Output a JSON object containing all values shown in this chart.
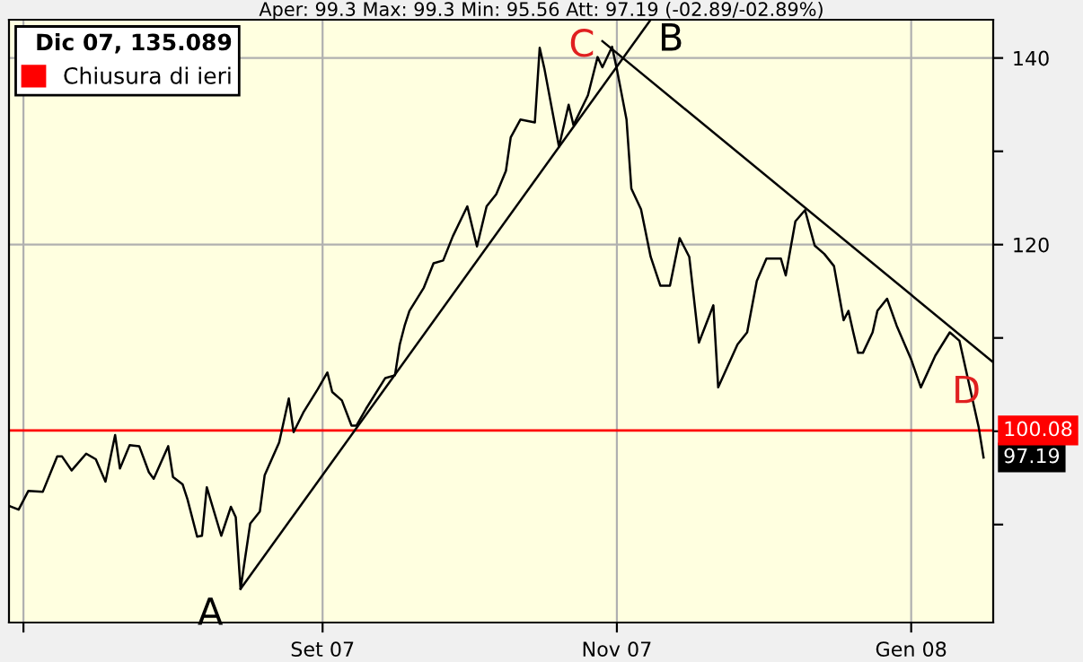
{
  "chart_data": {
    "type": "line",
    "title": "Aper: 99.3 Max: 99.3 Min: 95.56 Att: 97.19 (-02.89/-02.89%)",
    "legend_title": "Dic 07, 135.089",
    "legend": "top left",
    "grid": true,
    "xlim": [
      "2007-06-28",
      "2008-01-18"
    ],
    "xticks": [
      {
        "value": "2007-07-01",
        "label": null
      },
      {
        "value": "2007-09-01",
        "label": "Set 07"
      },
      {
        "value": "2007-11-01",
        "label": "Nov 07"
      },
      {
        "value": "2008-01-01",
        "label": "Gen 08"
      }
    ],
    "ylim": [
      79.5,
      144.1
    ],
    "yticks": [
      {
        "value": 90,
        "label": null
      },
      {
        "value": 100,
        "label": null
      },
      {
        "value": 110,
        "label": null
      },
      120,
      {
        "value": 130,
        "label": null
      },
      140
    ],
    "ref_lines": [
      {
        "axis": "y",
        "value": 100.08,
        "label": "Chiusura di ieri",
        "color": "#ff0000"
      }
    ],
    "annotations": [
      {
        "text": "A",
        "x": "2007-08-15",
        "y": 83.1
      },
      {
        "text": "B",
        "x": "2007-11-08",
        "y": 144.1
      },
      {
        "text": "C",
        "x": "2007-10-29",
        "y": 141.8
      },
      {
        "text": "D",
        "x": "2008-01-18",
        "y": 107.4
      },
      "100.08"
    ],
    "series": [
      {
        "color": "#000000",
        "x": [
          "2007-06-28",
          "2007-06-30",
          "2007-07-02",
          "2007-07-05",
          "2007-07-08",
          "2007-07-09",
          "2007-07-11",
          "2007-07-14",
          "2007-07-16",
          "2007-07-18",
          "2007-07-20",
          "2007-07-21",
          "2007-07-23",
          "2007-07-25",
          "2007-07-27",
          "2007-07-28",
          "2007-07-31",
          "2007-08-01",
          "2007-08-03",
          "2007-08-04",
          "2007-08-06",
          "2007-08-07",
          "2007-08-08",
          "2007-08-11",
          "2007-08-13",
          "2007-08-14",
          "2007-08-15",
          "2007-08-17",
          "2007-08-19",
          "2007-08-20",
          "2007-08-23",
          "2007-08-25",
          "2007-08-26",
          "2007-08-28",
          "2007-08-31",
          "2007-09-02",
          "2007-09-03",
          "2007-09-05",
          "2007-09-07",
          "2007-09-08",
          "2007-09-10",
          "2007-09-14",
          "2007-09-16",
          "2007-09-17",
          "2007-09-18",
          "2007-09-19",
          "2007-09-22",
          "2007-09-24",
          "2007-09-26",
          "2007-09-28",
          "2007-10-01",
          "2007-10-03",
          "2007-10-05",
          "2007-10-07",
          "2007-10-09",
          "2007-10-10",
          "2007-10-12",
          "2007-10-15",
          "2007-10-16",
          "2007-10-17",
          "2007-10-20",
          "2007-10-22",
          "2007-10-23",
          "2007-10-26",
          "2007-10-28",
          "2007-10-29",
          "2007-10-31",
          "2007-11-01",
          "2007-11-03",
          "2007-11-04",
          "2007-11-06",
          "2007-11-08",
          "2007-11-10",
          "2007-11-12",
          "2007-11-14",
          "2007-11-16",
          "2007-11-18",
          "2007-11-21",
          "2007-11-22",
          "2007-11-26",
          "2007-11-28",
          "2007-11-30",
          "2007-12-02",
          "2007-12-05",
          "2007-12-06",
          "2007-12-08",
          "2007-12-10",
          "2007-12-12",
          "2007-12-14",
          "2007-12-16",
          "2007-12-18",
          "2007-12-19",
          "2007-12-20",
          "2007-12-21",
          "2007-12-22",
          "2007-12-24",
          "2007-12-25",
          "2007-12-27",
          "2007-12-29",
          "2008-01-01",
          "2008-01-03",
          "2008-01-06",
          "2008-01-09",
          "2008-01-11",
          "2008-01-15",
          "2008-01-16"
        ],
        "values": [
          92.0,
          91.6,
          93.6,
          93.5,
          97.3,
          97.3,
          95.8,
          97.6,
          97.0,
          94.6,
          99.6,
          96.0,
          98.5,
          98.4,
          95.6,
          94.9,
          98.4,
          95.1,
          94.3,
          92.7,
          88.7,
          88.8,
          94.0,
          88.8,
          91.9,
          90.8,
          83.1,
          90.1,
          91.4,
          95.3,
          98.8,
          103.5,
          99.9,
          102.0,
          104.5,
          106.3,
          104.2,
          103.3,
          100.6,
          100.6,
          102.4,
          105.7,
          106.0,
          109.3,
          111.3,
          112.9,
          115.4,
          118.0,
          118.3,
          120.9,
          124.1,
          119.8,
          124.1,
          125.4,
          127.9,
          131.5,
          133.4,
          133.1,
          141.1,
          138.8,
          130.5,
          135.0,
          132.8,
          136.0,
          140.1,
          139.0,
          141.2,
          138.8,
          133.4,
          126.0,
          123.8,
          118.7,
          115.6,
          115.6,
          120.7,
          118.7,
          109.5,
          113.5,
          104.7,
          109.3,
          110.6,
          116.1,
          118.5,
          118.5,
          116.7,
          122.5,
          123.7,
          119.9,
          119.0,
          117.7,
          111.9,
          112.9,
          110.6,
          108.4,
          108.4,
          110.6,
          112.9,
          114.2,
          111.3,
          107.7,
          104.7,
          108.1,
          110.6,
          109.7,
          100.4,
          97.19
        ],
        "value_labels": [
          null,
          null,
          null,
          null,
          null,
          null,
          null,
          null,
          null,
          null,
          null,
          null,
          null,
          null,
          null,
          null,
          null,
          null,
          null,
          null,
          null,
          null,
          null,
          null,
          null,
          null,
          null,
          null,
          null,
          null,
          null,
          null,
          null,
          null,
          null,
          null,
          null,
          null,
          null,
          null,
          null,
          null,
          null,
          null,
          null,
          null,
          null,
          null,
          null,
          null,
          null,
          null,
          null,
          null,
          null,
          null,
          null,
          null,
          null,
          null,
          null,
          null,
          null,
          null,
          null,
          null,
          null,
          null,
          null,
          null,
          null,
          null,
          null,
          null,
          null,
          null,
          null,
          null,
          null,
          null,
          null,
          null,
          null,
          null,
          null,
          null,
          null,
          null,
          null,
          null,
          null,
          null,
          null,
          null,
          null,
          null,
          null,
          null,
          null,
          null,
          null,
          null,
          null,
          null,
          null,
          "97.19"
        ]
      },
      {
        "color": "#000000",
        "x": [
          "2007-08-15",
          "2007-11-08"
        ],
        "values": [
          83.1,
          144.1
        ]
      },
      {
        "color": "#000000",
        "x": [
          "2007-10-29",
          "2008-01-18"
        ],
        "values": [
          141.8,
          107.4
        ]
      }
    ]
  }
}
